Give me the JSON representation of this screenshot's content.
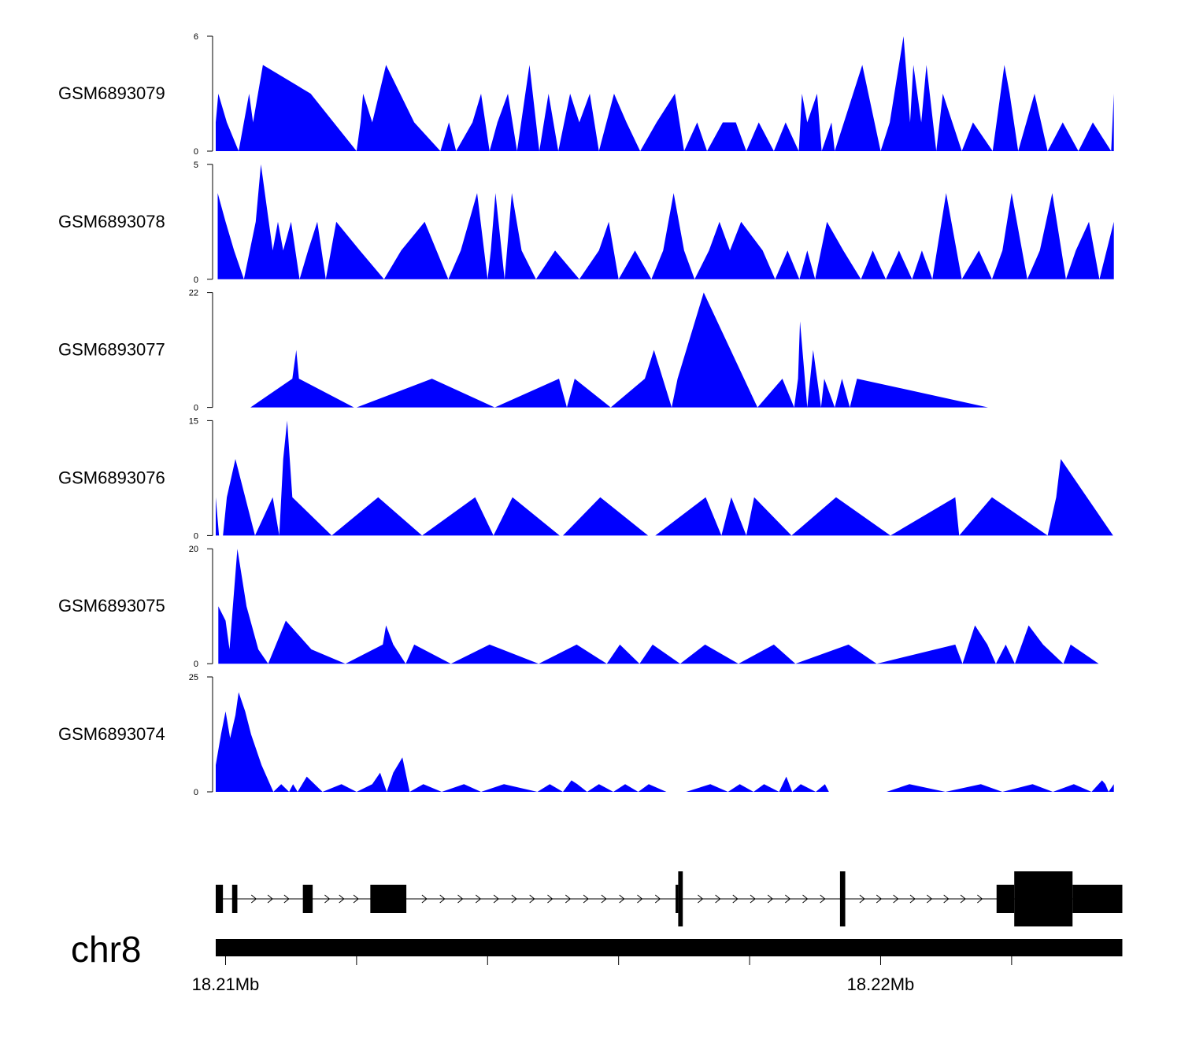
{
  "chart_data": {
    "type": "area",
    "title": "",
    "x_range_bp": [
      18209850,
      18223600
    ],
    "fill_color": "#0000ff",
    "tracks": [
      {
        "name": "GSM6893079",
        "ylim": [
          0,
          6
        ],
        "x": [
          18209850,
          18209890,
          18210020,
          18210200,
          18210360,
          18210420,
          18210570,
          18211300,
          18212000,
          18212060,
          18212100,
          18212240,
          18212450,
          18212880,
          18213280,
          18213410,
          18213520,
          18213770,
          18213900,
          18214030,
          18214150,
          18214310,
          18214450,
          18214640,
          18214790,
          18214930,
          18215080,
          18215260,
          18215400,
          18215560,
          18215700,
          18215930,
          18216120,
          18216330,
          18216580,
          18216860,
          18217000,
          18217200,
          18217350,
          18217590,
          18217790,
          18217950,
          18218140,
          18218370,
          18218550,
          18218750,
          18218800,
          18218880,
          18219030,
          18219100,
          18219250,
          18219300,
          18219720,
          18220000,
          18220140,
          18220350,
          18220450,
          18220500,
          18220620,
          18220700,
          18220850,
          18220950,
          18221240,
          18221410,
          18221710,
          18221890,
          18221970,
          18222100,
          18222350,
          18222550,
          18222780,
          18223020,
          18223240,
          18223520,
          18223560
        ],
        "values": [
          1.5,
          3,
          1.5,
          0,
          3,
          1.5,
          4.5,
          3,
          0,
          1.5,
          3,
          1.5,
          4.5,
          1.5,
          0,
          1.5,
          0,
          1.5,
          3,
          0,
          1.5,
          3,
          0,
          4.5,
          0,
          3,
          0,
          3,
          1.5,
          3,
          0,
          3,
          1.5,
          0,
          1.5,
          3,
          0,
          1.5,
          0,
          1.5,
          1.5,
          0,
          1.5,
          0,
          1.5,
          0,
          3,
          1.5,
          3,
          0,
          1.5,
          0,
          4.5,
          0,
          1.5,
          6,
          1.5,
          4.5,
          1.5,
          4.5,
          0,
          3,
          0,
          1.5,
          0,
          4.5,
          3,
          0,
          3,
          0,
          1.5,
          0,
          1.5,
          0,
          3
        ]
      },
      {
        "name": "GSM6893078",
        "ylim": [
          0,
          5
        ],
        "x": [
          18209880,
          18210000,
          18210130,
          18210280,
          18210460,
          18210540,
          18210660,
          18210720,
          18210800,
          18210880,
          18211000,
          18211130,
          18211260,
          18211400,
          18211530,
          18211690,
          18212050,
          18212420,
          18212680,
          18213040,
          18213400,
          18213590,
          18213840,
          18214000,
          18214050,
          18214120,
          18214260,
          18214370,
          18214520,
          18214740,
          18215030,
          18215400,
          18215700,
          18215850,
          18216000,
          18216250,
          18216500,
          18216680,
          18216840,
          18217000,
          18217160,
          18217380,
          18217540,
          18217700,
          18217870,
          18218200,
          18218390,
          18218580,
          18218760,
          18218880,
          18219000,
          18219180,
          18219430,
          18219700,
          18219880,
          18220080,
          18220280,
          18220480,
          18220630,
          18220790,
          18221000,
          18221240,
          18221500,
          18221700,
          18221860,
          18222000,
          18222240,
          18222430,
          18222620,
          18222830,
          18222980,
          18223180,
          18223340,
          18223560
        ],
        "values": [
          3.75,
          2.5,
          1.25,
          0,
          2.5,
          5,
          2.5,
          1.25,
          2.5,
          1.25,
          2.5,
          0,
          1.25,
          2.5,
          0,
          2.5,
          1.25,
          0,
          1.25,
          2.5,
          0,
          1.25,
          3.75,
          0,
          1.25,
          3.75,
          0,
          3.75,
          1.25,
          0,
          1.25,
          0,
          1.25,
          2.5,
          0,
          1.25,
          0,
          1.25,
          3.75,
          1.25,
          0,
          1.25,
          2.5,
          1.25,
          2.5,
          1.25,
          0,
          1.25,
          0,
          1.25,
          0,
          2.5,
          1.25,
          0,
          1.25,
          0,
          1.25,
          0,
          1.25,
          0,
          3.75,
          0,
          1.25,
          0,
          1.25,
          3.75,
          0,
          1.25,
          3.75,
          0,
          1.25,
          2.5,
          0,
          2.5
        ]
      },
      {
        "name": "GSM6893077",
        "ylim": [
          0,
          22
        ],
        "x": [
          18210380,
          18211020,
          18211080,
          18211120,
          18211960,
          18212000,
          18213150,
          18214110,
          18215090,
          18215210,
          18215330,
          18215880,
          18216400,
          18216540,
          18216810,
          18216900,
          18217300,
          18218120,
          18218500,
          18218680,
          18218740,
          18218770,
          18218880,
          18218970,
          18219090,
          18219140,
          18219300,
          18219410,
          18219530,
          18219640,
          18221640
        ],
        "values": [
          0,
          5.5,
          11,
          5.5,
          0,
          0,
          5.5,
          0,
          5.5,
          0,
          5.5,
          0,
          5.5,
          11,
          0,
          5.5,
          22,
          0,
          5.5,
          0,
          5.5,
          16.5,
          0,
          11,
          0,
          5.5,
          0,
          5.5,
          0,
          5.5,
          0
        ]
      },
      {
        "name": "GSM6893076",
        "ylim": [
          0,
          15
        ],
        "x": [
          18209850,
          18209900,
          18209960,
          18210020,
          18210150,
          18210450,
          18210720,
          18210820,
          18210880,
          18210940,
          18211020,
          18211620,
          18212330,
          18213000,
          18213810,
          18214090,
          18214380,
          18215100,
          18215150,
          18215720,
          18216450,
          18216560,
          18217330,
          18217570,
          18217720,
          18217950,
          18218070,
          18218640,
          18219320,
          18220150,
          18221140,
          18221200,
          18221700,
          18222550,
          18222680,
          18222750,
          18223550
        ],
        "values": [
          5,
          0,
          0,
          5,
          10,
          0,
          5,
          0,
          10,
          15,
          5,
          0,
          5,
          0,
          5,
          0,
          5,
          0,
          0,
          5,
          0,
          0,
          5,
          0,
          5,
          0,
          5,
          0,
          5,
          0,
          5,
          0,
          5,
          0,
          5,
          10,
          0
        ]
      },
      {
        "name": "GSM6893075",
        "ylim": [
          0,
          20
        ],
        "x": [
          18209890,
          18210000,
          18210060,
          18210180,
          18210320,
          18210500,
          18210650,
          18210920,
          18211310,
          18211830,
          18212400,
          18212450,
          18212560,
          18212750,
          18212880,
          18213440,
          18214030,
          18214780,
          18215360,
          18215820,
          18216020,
          18216320,
          18216520,
          18216940,
          18217320,
          18217830,
          18218370,
          18218700,
          18219510,
          18219940,
          18221140,
          18221250,
          18221440,
          18221630,
          18221760,
          18221910,
          18222050,
          18222260,
          18222480,
          18222790,
          18222900,
          18223330
        ],
        "values": [
          10,
          7.5,
          2.5,
          20,
          10,
          2.5,
          0,
          7.5,
          2.5,
          0,
          3.33,
          6.67,
          3.33,
          0,
          3.33,
          0,
          3.33,
          0,
          3.33,
          0,
          3.33,
          0,
          3.33,
          0,
          3.33,
          0,
          3.33,
          0,
          3.33,
          0,
          3.33,
          0,
          6.67,
          3.33,
          0,
          3.33,
          0,
          6.67,
          3.33,
          0,
          3.33,
          0
        ]
      },
      {
        "name": "GSM6893074",
        "ylim": [
          0,
          25
        ],
        "x": [
          18209850,
          18209930,
          18210000,
          18210070,
          18210150,
          18210200,
          18210300,
          18210390,
          18210450,
          18210550,
          18210730,
          18210850,
          18210970,
          18211030,
          18211100,
          18211240,
          18211480,
          18211770,
          18212000,
          18212240,
          18212360,
          18212460,
          18212560,
          18212700,
          18212810,
          18213020,
          18213300,
          18213640,
          18213900,
          18214250,
          18214760,
          18214950,
          18215150,
          18215280,
          18215370,
          18215520,
          18215700,
          18215920,
          18216100,
          18216300,
          18216460,
          18216730,
          18217030,
          18217400,
          18217670,
          18217850,
          18218060,
          18218220,
          18218450,
          18218560,
          18218650,
          18218780,
          18219010,
          18219150,
          18219210,
          18219590,
          18220090,
          18220440,
          18220990,
          18221530,
          18221860,
          18222320,
          18222630,
          18222950,
          18223220,
          18223380,
          18223430,
          18223480,
          18223560
        ],
        "values": [
          5.83,
          12.5,
          17.5,
          11.67,
          16.67,
          21.67,
          17.5,
          12.5,
          10,
          5.83,
          0,
          1.67,
          0,
          1.67,
          0,
          3.33,
          0,
          1.67,
          0,
          1.67,
          4.17,
          0,
          4.17,
          7.5,
          0,
          1.67,
          0,
          1.67,
          0,
          1.67,
          0,
          1.67,
          0,
          2.5,
          1.67,
          0,
          1.67,
          0,
          1.67,
          0,
          1.67,
          0,
          0,
          1.67,
          0,
          1.67,
          0,
          1.67,
          0,
          3.33,
          0,
          1.67,
          0,
          1.67,
          0,
          0,
          0,
          1.67,
          0,
          1.67,
          0,
          1.67,
          0,
          1.67,
          0,
          2.5,
          1.67,
          0,
          1.67
        ]
      }
    ],
    "gene_model": {
      "exons": [
        {
          "start": 18209850,
          "end": 18209960,
          "kind": "utr"
        },
        {
          "start": 18210100,
          "end": 18210180,
          "kind": "utr"
        },
        {
          "start": 18211180,
          "end": 18211330,
          "kind": "utr"
        },
        {
          "start": 18212210,
          "end": 18212760,
          "kind": "utr"
        },
        {
          "start": 18216870,
          "end": 18216910,
          "kind": "utr"
        },
        {
          "start": 18216910,
          "end": 18216980,
          "kind": "cds"
        },
        {
          "start": 18219380,
          "end": 18219460,
          "kind": "cds"
        },
        {
          "start": 18221770,
          "end": 18222040,
          "kind": "utr"
        },
        {
          "start": 18222040,
          "end": 18222930,
          "kind": "cds"
        },
        {
          "start": 18222930,
          "end": 18223690,
          "kind": "utr"
        }
      ],
      "intron_chevrons": ">",
      "color": "#000000"
    },
    "ideogram": {
      "chromosome": "chr8",
      "range_bp": [
        18209850,
        18223690
      ]
    },
    "x_axis": {
      "tick_positions_bp": [
        18210000,
        18212000,
        18214000,
        18216000,
        18218000,
        18220000,
        18222000
      ],
      "labels": [
        {
          "bp": 18210000,
          "text": "18.21Mb"
        },
        {
          "bp": 18220000,
          "text": "18.22Mb"
        }
      ]
    }
  }
}
